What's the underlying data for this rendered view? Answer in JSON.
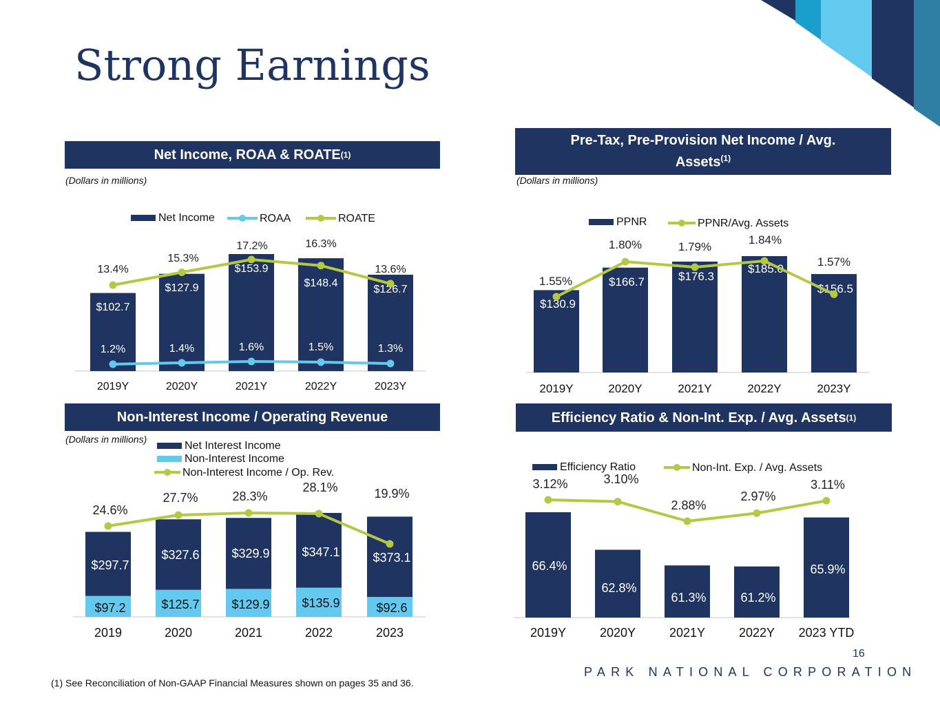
{
  "page": {
    "title": "Strong Earnings",
    "footnote": "(1)   See Reconciliation of Non-GAAP Financial Measures shown on pages 35 and 36.",
    "page_number": "16",
    "company": "PARK NATIONAL CORPORATION"
  },
  "colors": {
    "navy": "#1f3461",
    "light_blue": "#63c9ee",
    "green": "#b5c842",
    "teal": "#1a9fcc",
    "steel": "#2e7fa3"
  },
  "panels": {
    "p1": {
      "title": "Net Income, ROAA & ROATE",
      "sup": "(1)",
      "note": "(Dollars in millions)"
    },
    "p2": {
      "title": "Pre-Tax, Pre-Provision Net Income / Avg. Assets",
      "sup": "(1)",
      "note": "(Dollars in millions)"
    },
    "p3": {
      "title": "Non-Interest Income / Operating Revenue",
      "sup": "",
      "note": "(Dollars in millions)"
    },
    "p4": {
      "title": "Efficiency Ratio & Non-Int. Exp. / Avg. Assets",
      "sup": "(1)",
      "note": ""
    }
  },
  "chart_data": [
    {
      "id": "net-income",
      "type": "bar",
      "title": "Net Income, ROAA & ROATE",
      "categories": [
        "2019Y",
        "2020Y",
        "2021Y",
        "2022Y",
        "2023Y"
      ],
      "series": [
        {
          "name": "Net Income",
          "kind": "bar",
          "values": [
            102.7,
            127.9,
            153.9,
            148.4,
            126.7
          ],
          "labels": [
            "$102.7",
            "$127.9",
            "$153.9",
            "$148.4",
            "$126.7"
          ]
        },
        {
          "name": "ROAA",
          "kind": "line",
          "values": [
            1.2,
            1.4,
            1.6,
            1.5,
            1.3
          ],
          "labels": [
            "1.2%",
            "1.4%",
            "1.6%",
            "1.5%",
            "1.3%"
          ]
        },
        {
          "name": "ROATE",
          "kind": "line",
          "values": [
            13.4,
            15.3,
            17.2,
            16.3,
            13.6
          ],
          "labels": [
            "13.4%",
            "15.3%",
            "17.2%",
            "16.3%",
            "13.6%"
          ]
        }
      ],
      "legend": [
        "Net Income",
        "ROAA",
        "ROATE"
      ],
      "legend_position": "top",
      "xlabel": "",
      "ylabel": "Dollars in millions",
      "grid": false
    },
    {
      "id": "ppnr",
      "type": "bar",
      "title": "Pre-Tax, Pre-Provision Net Income / Avg. Assets",
      "categories": [
        "2019Y",
        "2020Y",
        "2021Y",
        "2022Y",
        "2023Y"
      ],
      "series": [
        {
          "name": "PPNR",
          "kind": "bar",
          "values": [
            130.9,
            166.7,
            176.3,
            185.0,
            156.5
          ],
          "labels": [
            "$130.9",
            "$166.7",
            "$176.3",
            "$185.0",
            "$156.5"
          ]
        },
        {
          "name": "PPNR/Avg. Assets",
          "kind": "line",
          "values": [
            1.55,
            1.8,
            1.79,
            1.84,
            1.57
          ],
          "labels": [
            "1.55%",
            "1.80%",
            "1.79%",
            "1.84%",
            "1.57%"
          ]
        }
      ],
      "legend": [
        "PPNR",
        "PPNR/Avg. Assets"
      ],
      "legend_position": "top",
      "xlabel": "",
      "ylabel": "Dollars in millions",
      "grid": false
    },
    {
      "id": "non-interest",
      "type": "bar",
      "stacked": true,
      "title": "Non-Interest Income / Operating Revenue",
      "categories": [
        "2019",
        "2020",
        "2021",
        "2022",
        "2023"
      ],
      "series": [
        {
          "name": "Net Interest Income",
          "kind": "bar",
          "values": [
            297.7,
            327.6,
            329.9,
            347.1,
            373.1
          ],
          "labels": [
            "$297.7",
            "$327.6",
            "$329.9",
            "$347.1",
            "$373.1"
          ]
        },
        {
          "name": "Non-Interest Income",
          "kind": "bar",
          "values": [
            97.2,
            125.7,
            129.9,
            135.9,
            92.6
          ],
          "labels": [
            "$97.2",
            "$125.7",
            "$129.9",
            "$135.9",
            "$92.6"
          ]
        },
        {
          "name": "Non-Interest Income / Op. Rev.",
          "kind": "line",
          "values": [
            24.6,
            27.7,
            28.3,
            28.1,
            19.9
          ],
          "labels": [
            "24.6%",
            "27.7%",
            "28.3%",
            "28.1%",
            "19.9%"
          ]
        }
      ],
      "legend": [
        "Net Interest Income",
        "Non-Interest Income",
        "Non-Interest Income / Op. Rev."
      ],
      "legend_position": "top-left",
      "xlabel": "",
      "ylabel": "Dollars in millions",
      "grid": false
    },
    {
      "id": "efficiency",
      "type": "bar",
      "title": "Efficiency Ratio & Non-Int. Exp. / Avg. Assets",
      "categories": [
        "2019Y",
        "2020Y",
        "2021Y",
        "2022Y",
        "2023 YTD"
      ],
      "series": [
        {
          "name": "Efficiency Ratio",
          "kind": "bar",
          "values": [
            66.4,
            62.8,
            61.3,
            61.2,
            65.9
          ],
          "labels": [
            "66.4%",
            "62.8%",
            "61.3%",
            "61.2%",
            "65.9%"
          ]
        },
        {
          "name": "Non-Int. Exp. / Avg. Assets",
          "kind": "line",
          "values": [
            3.12,
            3.1,
            2.88,
            2.97,
            3.11
          ],
          "labels": [
            "3.12%",
            "3.10%",
            "2.88%",
            "2.97%",
            "3.11%"
          ]
        }
      ],
      "legend": [
        "Efficiency Ratio",
        "Non-Int. Exp. / Avg. Assets"
      ],
      "legend_position": "top",
      "xlabel": "",
      "ylabel": "",
      "grid": false
    }
  ]
}
